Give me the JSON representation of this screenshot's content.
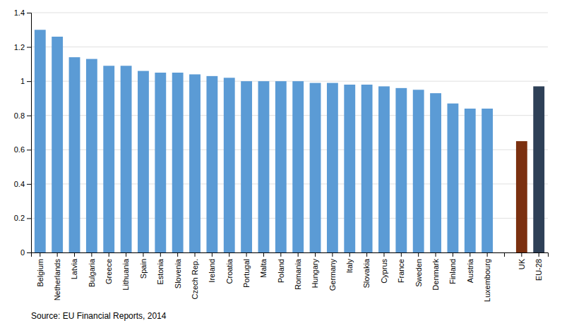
{
  "chart_data": {
    "type": "bar",
    "categories": [
      "Belgium",
      "Netherlands",
      "Latvia",
      "Bulgaria",
      "Greece",
      "Lithuania",
      "Spain",
      "Estonia",
      "Slovenia",
      "Czech Rep.",
      "Ireland",
      "Croatia",
      "Portugal",
      "Malta",
      "Poland",
      "Romania",
      "Hungary",
      "Germany",
      "Italy",
      "Slovakia",
      "Cyprus",
      "France",
      "Sweden",
      "Denmark",
      "Finland",
      "Austria",
      "Luxembourg",
      null,
      "UK",
      "EU-28"
    ],
    "values": [
      1.3,
      1.26,
      1.14,
      1.13,
      1.09,
      1.09,
      1.06,
      1.05,
      1.05,
      1.04,
      1.03,
      1.02,
      1.0,
      1.0,
      1.0,
      1.0,
      0.99,
      0.99,
      0.98,
      0.98,
      0.97,
      0.96,
      0.95,
      0.93,
      0.87,
      0.84,
      0.84,
      null,
      0.65,
      0.97
    ],
    "colors": [
      "#5b9bd5",
      "#5b9bd5",
      "#5b9bd5",
      "#5b9bd5",
      "#5b9bd5",
      "#5b9bd5",
      "#5b9bd5",
      "#5b9bd5",
      "#5b9bd5",
      "#5b9bd5",
      "#5b9bd5",
      "#5b9bd5",
      "#5b9bd5",
      "#5b9bd5",
      "#5b9bd5",
      "#5b9bd5",
      "#5b9bd5",
      "#5b9bd5",
      "#5b9bd5",
      "#5b9bd5",
      "#5b9bd5",
      "#5b9bd5",
      "#5b9bd5",
      "#5b9bd5",
      "#5b9bd5",
      "#5b9bd5",
      "#5b9bd5",
      "none",
      "#7b3010",
      "#2e4057"
    ],
    "ylim": [
      0,
      1.4
    ],
    "yticks": [
      0,
      0.2,
      0.4,
      0.6,
      0.8,
      1,
      1.2,
      1.4
    ],
    "grid": true,
    "annotations": [
      "Source: EU Financial Reports, 2014"
    ]
  }
}
